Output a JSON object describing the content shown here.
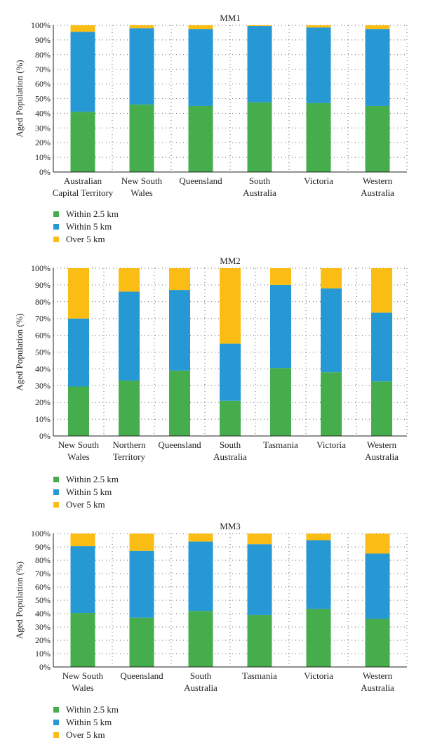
{
  "colors": {
    "within_2_5_km": "#45ad4b",
    "within_5_km": "#2698d4",
    "over_5_km": "#fbbd13"
  },
  "chart_data": [
    {
      "type": "bar",
      "stacked": true,
      "title": "MM1",
      "ylabel": "Aged Population (%)",
      "ylim": [
        0,
        100
      ],
      "yticks": [
        "0%",
        "10%",
        "20%",
        "30%",
        "40%",
        "50%",
        "60%",
        "70%",
        "80%",
        "90%",
        "100%"
      ],
      "grid": "dotted",
      "legend_position": "bottom-left",
      "categories": [
        [
          "Australian",
          "Capital Territory"
        ],
        [
          "New South",
          "Wales"
        ],
        [
          "Queensland"
        ],
        [
          "South",
          "Australia"
        ],
        [
          "Victoria"
        ],
        [
          "Western",
          "Australia"
        ]
      ],
      "series": [
        {
          "name": "Within 2.5 km",
          "color": "#45ad4b",
          "values": [
            41,
            46,
            45,
            47.5,
            47,
            45
          ]
        },
        {
          "name": "Within 5 km",
          "color": "#2698d4",
          "values": [
            54.5,
            52,
            52.5,
            52,
            51.5,
            52.5
          ]
        },
        {
          "name": "Over 5 km",
          "color": "#fbbd13",
          "values": [
            4.5,
            2,
            2.5,
            0.5,
            1.5,
            2.5
          ]
        }
      ]
    },
    {
      "type": "bar",
      "stacked": true,
      "title": "MM2",
      "ylabel": "Aged Population (%)",
      "ylim": [
        0,
        100
      ],
      "yticks": [
        "0%",
        "10%",
        "20%",
        "30%",
        "40%",
        "50%",
        "60%",
        "70%",
        "80%",
        "90%",
        "100%"
      ],
      "grid": "dotted",
      "legend_position": "bottom-left",
      "categories": [
        [
          "New South",
          "Wales"
        ],
        [
          "Northern",
          "Territory"
        ],
        [
          "Queensland"
        ],
        [
          "South",
          "Australia"
        ],
        [
          "Tasmania"
        ],
        [
          "Victoria"
        ],
        [
          "Western",
          "Australia"
        ]
      ],
      "series": [
        {
          "name": "Within 2.5 km",
          "color": "#45ad4b",
          "values": [
            29.5,
            33,
            39,
            21,
            40.5,
            38,
            32.5
          ]
        },
        {
          "name": "Within 5 km",
          "color": "#2698d4",
          "values": [
            40.5,
            53,
            48,
            34,
            49.5,
            50,
            41
          ]
        },
        {
          "name": "Over 5 km",
          "color": "#fbbd13",
          "values": [
            30,
            14,
            13,
            45,
            10,
            12,
            26.5
          ]
        }
      ]
    },
    {
      "type": "bar",
      "stacked": true,
      "title": "MM3",
      "ylabel": "Aged Population (%)",
      "ylim": [
        0,
        100
      ],
      "yticks": [
        "0%",
        "10%",
        "20%",
        "30%",
        "40%",
        "50%",
        "60%",
        "70%",
        "80%",
        "90%",
        "100%"
      ],
      "grid": "dotted",
      "legend_position": "bottom-left",
      "categories": [
        [
          "New South",
          "Wales"
        ],
        [
          "Queensland"
        ],
        [
          "South",
          "Australia"
        ],
        [
          "Tasmania"
        ],
        [
          "Victoria"
        ],
        [
          "Western",
          "Australia"
        ]
      ],
      "series": [
        {
          "name": "Within 2.5 km",
          "color": "#45ad4b",
          "values": [
            40.5,
            37,
            42,
            39,
            43.5,
            36
          ]
        },
        {
          "name": "Within 5 km",
          "color": "#2698d4",
          "values": [
            50,
            50,
            52,
            53,
            51.5,
            49
          ]
        },
        {
          "name": "Over 5 km",
          "color": "#fbbd13",
          "values": [
            9.5,
            13,
            6,
            8,
            5,
            15
          ]
        }
      ]
    }
  ]
}
